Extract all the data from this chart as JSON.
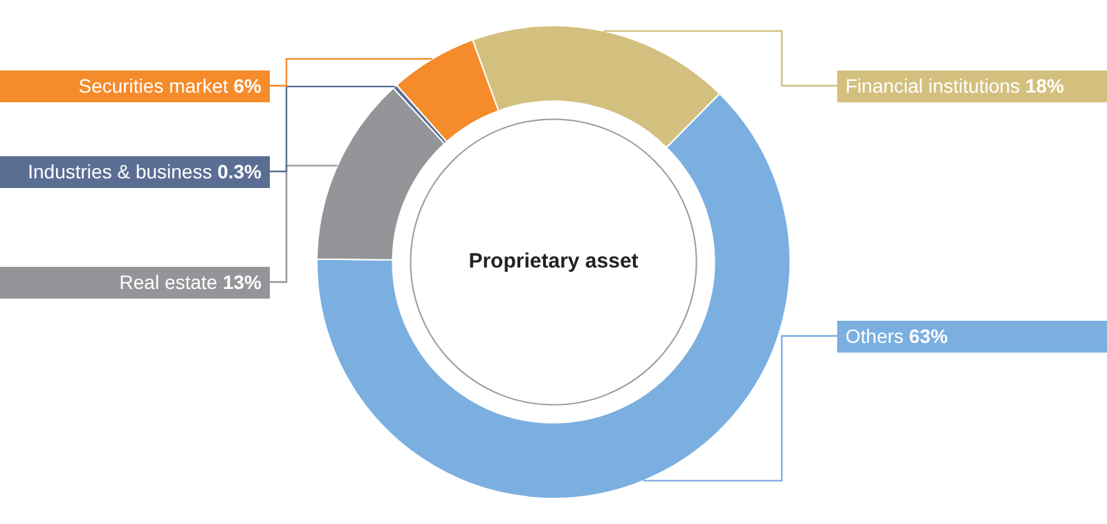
{
  "chart_data": {
    "type": "donut",
    "title": "Proprietary asset",
    "categories": [
      "Financial institutions",
      "Others",
      "Real estate",
      "Industries & business",
      "Securities market"
    ],
    "values": [
      18,
      63,
      13,
      0.3,
      6
    ],
    "value_labels": [
      "18%",
      "63%",
      "13%",
      "0.3%",
      "6%"
    ],
    "colors": [
      "#d4c07e",
      "#7aafe0",
      "#939598",
      "#5a6e94",
      "#f58b2a"
    ],
    "legend": false
  }
}
